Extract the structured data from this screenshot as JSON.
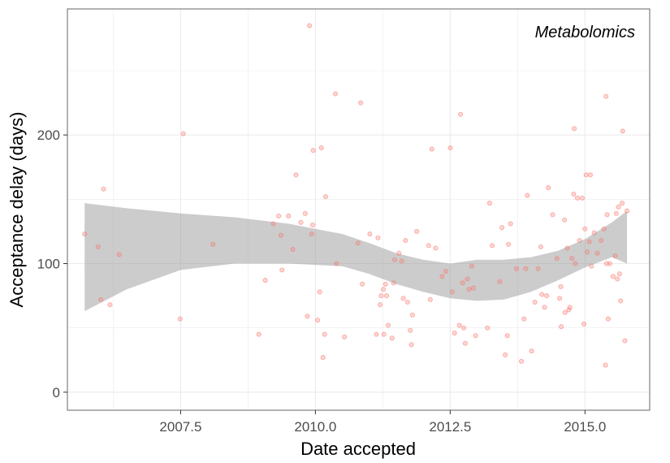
{
  "chart_data": {
    "type": "scatter",
    "annotation": "Metabolomics",
    "xlabel": "Date accepted",
    "ylabel": "Acceptance delay (days)",
    "xlim": [
      2005.4,
      2016.2
    ],
    "ylim": [
      -14,
      298
    ],
    "xticks": [
      {
        "value": 2007.5,
        "label": "2007.5"
      },
      {
        "value": 2010.0,
        "label": "2010.0"
      },
      {
        "value": 2012.5,
        "label": "2012.5"
      },
      {
        "value": 2015.0,
        "label": "2015.0"
      }
    ],
    "yticks": [
      {
        "value": 0,
        "label": "0"
      },
      {
        "value": 100,
        "label": "100"
      },
      {
        "value": 200,
        "label": "200"
      }
    ],
    "grid": true,
    "point_color": "#f8766d",
    "band_color": "#999999",
    "points": [
      [
        2005.72,
        123
      ],
      [
        2005.97,
        113
      ],
      [
        2006.02,
        72
      ],
      [
        2006.07,
        158
      ],
      [
        2006.19,
        68
      ],
      [
        2006.36,
        107
      ],
      [
        2007.49,
        57
      ],
      [
        2007.55,
        201
      ],
      [
        2008.1,
        115
      ],
      [
        2008.95,
        45
      ],
      [
        2009.07,
        87
      ],
      [
        2009.22,
        131
      ],
      [
        2009.32,
        137
      ],
      [
        2009.36,
        122
      ],
      [
        2009.38,
        95
      ],
      [
        2009.5,
        137
      ],
      [
        2009.58,
        111
      ],
      [
        2009.64,
        169
      ],
      [
        2009.73,
        132
      ],
      [
        2009.81,
        139
      ],
      [
        2009.85,
        59
      ],
      [
        2009.89,
        285
      ],
      [
        2009.93,
        123
      ],
      [
        2009.95,
        130
      ],
      [
        2009.96,
        188
      ],
      [
        2010.04,
        56
      ],
      [
        2010.08,
        78
      ],
      [
        2010.11,
        190
      ],
      [
        2010.14,
        27
      ],
      [
        2010.17,
        45
      ],
      [
        2010.19,
        152
      ],
      [
        2010.37,
        232
      ],
      [
        2010.39,
        100
      ],
      [
        2010.54,
        43
      ],
      [
        2010.79,
        116
      ],
      [
        2010.84,
        225
      ],
      [
        2010.87,
        84
      ],
      [
        2011.01,
        123
      ],
      [
        2011.13,
        45
      ],
      [
        2011.16,
        120
      ],
      [
        2011.2,
        68
      ],
      [
        2011.22,
        75
      ],
      [
        2011.26,
        80
      ],
      [
        2011.27,
        45
      ],
      [
        2011.3,
        84
      ],
      [
        2011.32,
        75
      ],
      [
        2011.35,
        52
      ],
      [
        2011.42,
        42
      ],
      [
        2011.45,
        85
      ],
      [
        2011.47,
        103
      ],
      [
        2011.55,
        108
      ],
      [
        2011.6,
        102
      ],
      [
        2011.63,
        73
      ],
      [
        2011.67,
        118
      ],
      [
        2011.71,
        70
      ],
      [
        2011.76,
        48
      ],
      [
        2011.78,
        37
      ],
      [
        2011.8,
        60
      ],
      [
        2011.88,
        125
      ],
      [
        2012.1,
        114
      ],
      [
        2012.13,
        72
      ],
      [
        2012.16,
        189
      ],
      [
        2012.23,
        112
      ],
      [
        2012.35,
        90
      ],
      [
        2012.42,
        94
      ],
      [
        2012.5,
        190
      ],
      [
        2012.54,
        78
      ],
      [
        2012.58,
        46
      ],
      [
        2012.67,
        52
      ],
      [
        2012.69,
        216
      ],
      [
        2012.73,
        85
      ],
      [
        2012.75,
        50
      ],
      [
        2012.78,
        38
      ],
      [
        2012.82,
        88
      ],
      [
        2012.85,
        80
      ],
      [
        2012.9,
        98
      ],
      [
        2012.93,
        81
      ],
      [
        2012.97,
        44
      ],
      [
        2013.19,
        50
      ],
      [
        2013.23,
        147
      ],
      [
        2013.28,
        114
      ],
      [
        2013.42,
        86
      ],
      [
        2013.46,
        128
      ],
      [
        2013.52,
        29
      ],
      [
        2013.56,
        44
      ],
      [
        2013.58,
        115
      ],
      [
        2013.62,
        131
      ],
      [
        2013.73,
        96
      ],
      [
        2013.82,
        24
      ],
      [
        2013.87,
        57
      ],
      [
        2013.9,
        96
      ],
      [
        2013.93,
        153
      ],
      [
        2014.01,
        32
      ],
      [
        2014.07,
        70
      ],
      [
        2014.13,
        96
      ],
      [
        2014.18,
        113
      ],
      [
        2014.2,
        76
      ],
      [
        2014.25,
        66
      ],
      [
        2014.29,
        75
      ],
      [
        2014.32,
        159
      ],
      [
        2014.4,
        138
      ],
      [
        2014.48,
        104
      ],
      [
        2014.53,
        73
      ],
      [
        2014.55,
        82
      ],
      [
        2014.56,
        51
      ],
      [
        2014.62,
        134
      ],
      [
        2014.63,
        62
      ],
      [
        2014.67,
        112
      ],
      [
        2014.7,
        64
      ],
      [
        2014.72,
        66
      ],
      [
        2014.76,
        104
      ],
      [
        2014.79,
        154
      ],
      [
        2014.8,
        205
      ],
      [
        2014.82,
        100
      ],
      [
        2014.86,
        151
      ],
      [
        2014.9,
        118
      ],
      [
        2014.95,
        151
      ],
      [
        2014.98,
        53
      ],
      [
        2015.0,
        127
      ],
      [
        2015.02,
        169
      ],
      [
        2015.04,
        109
      ],
      [
        2015.08,
        117
      ],
      [
        2015.1,
        169
      ],
      [
        2015.12,
        98
      ],
      [
        2015.17,
        124
      ],
      [
        2015.23,
        108
      ],
      [
        2015.3,
        118
      ],
      [
        2015.35,
        127
      ],
      [
        2015.38,
        21
      ],
      [
        2015.39,
        230
      ],
      [
        2015.4,
        100
      ],
      [
        2015.41,
        138
      ],
      [
        2015.43,
        57
      ],
      [
        2015.46,
        100
      ],
      [
        2015.52,
        90
      ],
      [
        2015.56,
        106
      ],
      [
        2015.58,
        139
      ],
      [
        2015.6,
        88
      ],
      [
        2015.62,
        144
      ],
      [
        2015.64,
        92
      ],
      [
        2015.66,
        71
      ],
      [
        2015.69,
        147
      ],
      [
        2015.7,
        203
      ],
      [
        2015.74,
        40
      ],
      [
        2015.78,
        141
      ]
    ],
    "smooth": {
      "x": [
        2005.72,
        2006.5,
        2007.5,
        2008.5,
        2009.5,
        2010.5,
        2011.0,
        2011.5,
        2012.0,
        2012.5,
        2013.0,
        2013.5,
        2014.0,
        2014.5,
        2015.0,
        2015.5,
        2015.78
      ],
      "upper": [
        147,
        143,
        139,
        136,
        131,
        123,
        116,
        108,
        103,
        100,
        103,
        103,
        105,
        110,
        119,
        132,
        141
      ],
      "lower": [
        63,
        80,
        95,
        100,
        100,
        98,
        92,
        84,
        78,
        73,
        71,
        72,
        78,
        87,
        97,
        105,
        100
      ]
    }
  }
}
